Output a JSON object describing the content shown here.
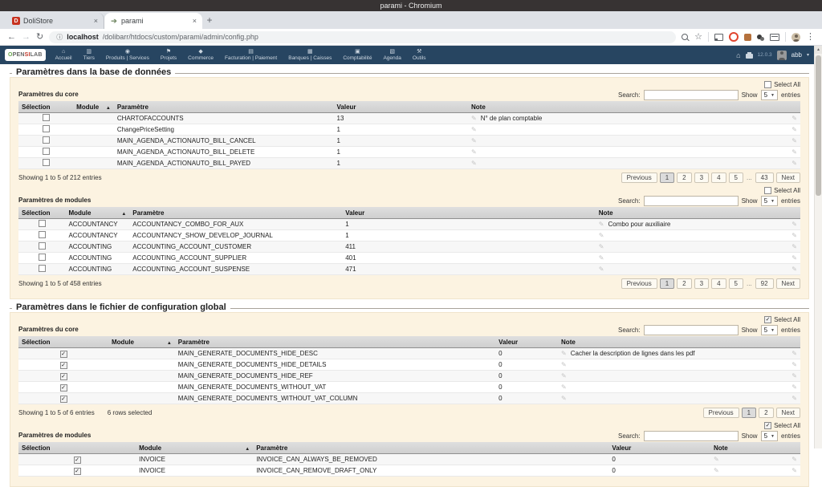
{
  "window": {
    "title": "parami - Chromium"
  },
  "browser": {
    "tabs": [
      {
        "label": "DoliStore",
        "favicon": "D",
        "close": "×",
        "active": false
      },
      {
        "label": "parami",
        "favicon": "➔",
        "close": "×",
        "active": true
      }
    ],
    "new_tab_label": "+",
    "back_icon": "←",
    "forward_icon": "→",
    "reload_icon": "↻",
    "url_info_icon": "ⓘ",
    "url_host": "localhost",
    "url_path": "/dolibarr/htdocs/custom/parami/admin/config.php",
    "bookmark_icon": "☆",
    "menu_icon": "⋮"
  },
  "navbar": {
    "logo_o": "O",
    "logo_pen": "PEN",
    "logo_si": "SI",
    "logo_lab": "LAB",
    "items": [
      {
        "label": "Accueil",
        "icon": "home-icon",
        "glyph": "⌂"
      },
      {
        "label": "Tiers",
        "icon": "thirdparties-icon",
        "glyph": "▥"
      },
      {
        "label": "Produits | Services",
        "icon": "products-icon",
        "glyph": "◉"
      },
      {
        "label": "Projets",
        "icon": "projects-icon",
        "glyph": "⚑"
      },
      {
        "label": "Commerce",
        "icon": "commerce-icon",
        "glyph": "◆"
      },
      {
        "label": "Facturation | Paiement",
        "icon": "billing-icon",
        "glyph": "▤"
      },
      {
        "label": "Banques | Caisses",
        "icon": "bank-icon",
        "glyph": "▦"
      },
      {
        "label": "Comptabilité",
        "icon": "accountancy-icon",
        "glyph": "▣"
      },
      {
        "label": "Agenda",
        "icon": "agenda-icon",
        "glyph": "▧"
      },
      {
        "label": "Outils",
        "icon": "tools-icon",
        "glyph": "⚒"
      }
    ],
    "version": "12.0.3",
    "user": "abb",
    "user_caret": "▾"
  },
  "colors": {
    "menubar": "#274561",
    "panel_cream": "#fcf3e1",
    "table_header": "#d6d6d6",
    "active_page": "#dcdcdc",
    "favicon_red": "#c7321f"
  },
  "sections": [
    {
      "title": "Paramètres dans la base de données",
      "blocks": [
        {
          "label": "Paramètres du core",
          "select_all_label": "Select All",
          "select_all_checked": false,
          "search_label": "Search:",
          "show_label": "Show",
          "show_value": "5",
          "entries_label": "entries",
          "columns": [
            "Sélection",
            "Module",
            "Paramètre",
            "Valeur",
            "Note"
          ],
          "col_widths": [
            "7%",
            "5.2%",
            "28.1%",
            "17.2%",
            "42.5%"
          ],
          "rows": [
            {
              "checked": false,
              "module": "",
              "param": "CHARTOFACCOUNTS",
              "value": "13",
              "note": "N° de plan comptable"
            },
            {
              "checked": false,
              "module": "",
              "param": "ChangePriceSetting",
              "value": "1",
              "note": ""
            },
            {
              "checked": false,
              "module": "",
              "param": "MAIN_AGENDA_ACTIONAUTO_BILL_CANCEL",
              "value": "1",
              "note": ""
            },
            {
              "checked": false,
              "module": "",
              "param": "MAIN_AGENDA_ACTIONAUTO_BILL_DELETE",
              "value": "1",
              "note": ""
            },
            {
              "checked": false,
              "module": "",
              "param": "MAIN_AGENDA_ACTIONAUTO_BILL_PAYED",
              "value": "1",
              "note": ""
            }
          ],
          "showing": "Showing 1 to 5 of 212 entries",
          "selected_info": "",
          "pagination": [
            "Previous",
            "1",
            "2",
            "3",
            "4",
            "5",
            "...",
            "43",
            "Next"
          ],
          "active_page": "1"
        },
        {
          "label": "Paramètres de modules",
          "select_all_label": "Select All",
          "select_all_checked": false,
          "search_label": "Search:",
          "show_label": "Show",
          "show_value": "5",
          "entries_label": "entries",
          "columns": [
            "Sélection",
            "Module",
            "Paramètre",
            "Valeur",
            "Note"
          ],
          "col_widths": [
            "6%",
            "8.2%",
            "27.2%",
            "32.4%",
            "26.2%"
          ],
          "rows": [
            {
              "checked": false,
              "module": "ACCOUNTANCY",
              "param": "ACCOUNTANCY_COMBO_FOR_AUX",
              "value": "1",
              "note": "Combo pour auxiliaire"
            },
            {
              "checked": false,
              "module": "ACCOUNTANCY",
              "param": "ACCOUNTANCY_SHOW_DEVELOP_JOURNAL",
              "value": "1",
              "note": ""
            },
            {
              "checked": false,
              "module": "ACCOUNTING",
              "param": "ACCOUNTING_ACCOUNT_CUSTOMER",
              "value": "411",
              "note": ""
            },
            {
              "checked": false,
              "module": "ACCOUNTING",
              "param": "ACCOUNTING_ACCOUNT_SUPPLIER",
              "value": "401",
              "note": ""
            },
            {
              "checked": false,
              "module": "ACCOUNTING",
              "param": "ACCOUNTING_ACCOUNT_SUSPENSE",
              "value": "471",
              "note": ""
            }
          ],
          "showing": "Showing 1 to 5 of 458 entries",
          "selected_info": "",
          "pagination": [
            "Previous",
            "1",
            "2",
            "3",
            "4",
            "5",
            "...",
            "92",
            "Next"
          ],
          "active_page": "1"
        }
      ]
    },
    {
      "title": "Paramètres dans le fichier de configuration global",
      "blocks": [
        {
          "label": "Paramètres du core",
          "select_all_label": "Select All",
          "select_all_checked": true,
          "search_label": "Search:",
          "show_label": "Show",
          "show_value": "5",
          "entries_label": "entries",
          "columns": [
            "Sélection",
            "Module",
            "Paramètre",
            "Valeur",
            "Note"
          ],
          "col_widths": [
            "11.5%",
            "8.5%",
            "41%",
            "8%",
            "31%"
          ],
          "rows": [
            {
              "checked": true,
              "module": "",
              "param": "MAIN_GENERATE_DOCUMENTS_HIDE_DESC",
              "value": "0",
              "note": "Cacher la description de lignes dans les pdf"
            },
            {
              "checked": true,
              "module": "",
              "param": "MAIN_GENERATE_DOCUMENTS_HIDE_DETAILS",
              "value": "0",
              "note": ""
            },
            {
              "checked": true,
              "module": "",
              "param": "MAIN_GENERATE_DOCUMENTS_HIDE_REF",
              "value": "0",
              "note": ""
            },
            {
              "checked": true,
              "module": "",
              "param": "MAIN_GENERATE_DOCUMENTS_WITHOUT_VAT",
              "value": "0",
              "note": ""
            },
            {
              "checked": true,
              "module": "",
              "param": "MAIN_GENERATE_DOCUMENTS_WITHOUT_VAT_COLUMN",
              "value": "0",
              "note": ""
            }
          ],
          "showing": "Showing 1 to 5 of 6 entries",
          "selected_info": "6 rows selected",
          "pagination": [
            "Previous",
            "1",
            "2",
            "Next"
          ],
          "active_page": "1"
        },
        {
          "label": "Paramètres de modules",
          "select_all_label": "Select All",
          "select_all_checked": true,
          "search_label": "Search:",
          "show_label": "Show",
          "show_value": "5",
          "entries_label": "entries",
          "columns": [
            "Sélection",
            "Module",
            "Paramètre",
            "Valeur",
            "Note"
          ],
          "col_widths": [
            "15%",
            "15%",
            "45.5%",
            "13%",
            "11.5%"
          ],
          "rows": [
            {
              "checked": true,
              "module": "INVOICE",
              "param": "INVOICE_CAN_ALWAYS_BE_REMOVED",
              "value": "0",
              "note": ""
            },
            {
              "checked": true,
              "module": "INVOICE",
              "param": "INVOICE_CAN_REMOVE_DRAFT_ONLY",
              "value": "0",
              "note": ""
            }
          ],
          "showing": "",
          "selected_info": "",
          "pagination": [],
          "active_page": "1"
        }
      ]
    }
  ]
}
